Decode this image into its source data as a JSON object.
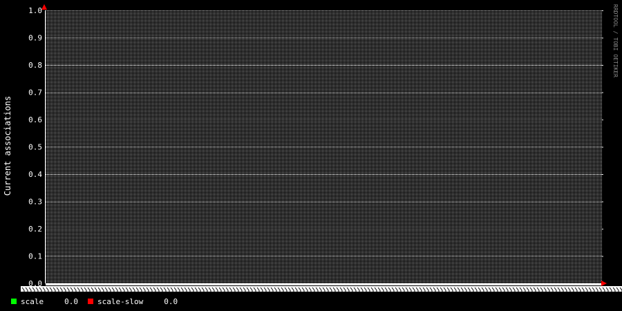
{
  "watermark": "RRDTOOL / TOBI OETIKER",
  "colors": {
    "background": "#000000",
    "plot_background": "#000000",
    "grid_minor": "#bdbdbd",
    "grid_major": "#e6e6e6",
    "text": "#ffffff",
    "arrow": "#ff0000"
  },
  "chart_data": {
    "type": "line",
    "ylabel": "Current associations",
    "ylim": [
      0,
      1
    ],
    "yticks": [
      "0.0",
      "0.1",
      "0.2",
      "0.3",
      "0.4",
      "0.5",
      "0.6",
      "0.7",
      "0.8",
      "0.9",
      "1.0"
    ],
    "grid": true,
    "x_ticks_note": "x-axis labels are illegible (overlapping)",
    "series": [
      {
        "name": "scale",
        "color": "#00ff00",
        "current": "0.0",
        "values": []
      },
      {
        "name": "scale-slow",
        "color": "#ff0000",
        "current": "0.0",
        "values": []
      }
    ]
  }
}
